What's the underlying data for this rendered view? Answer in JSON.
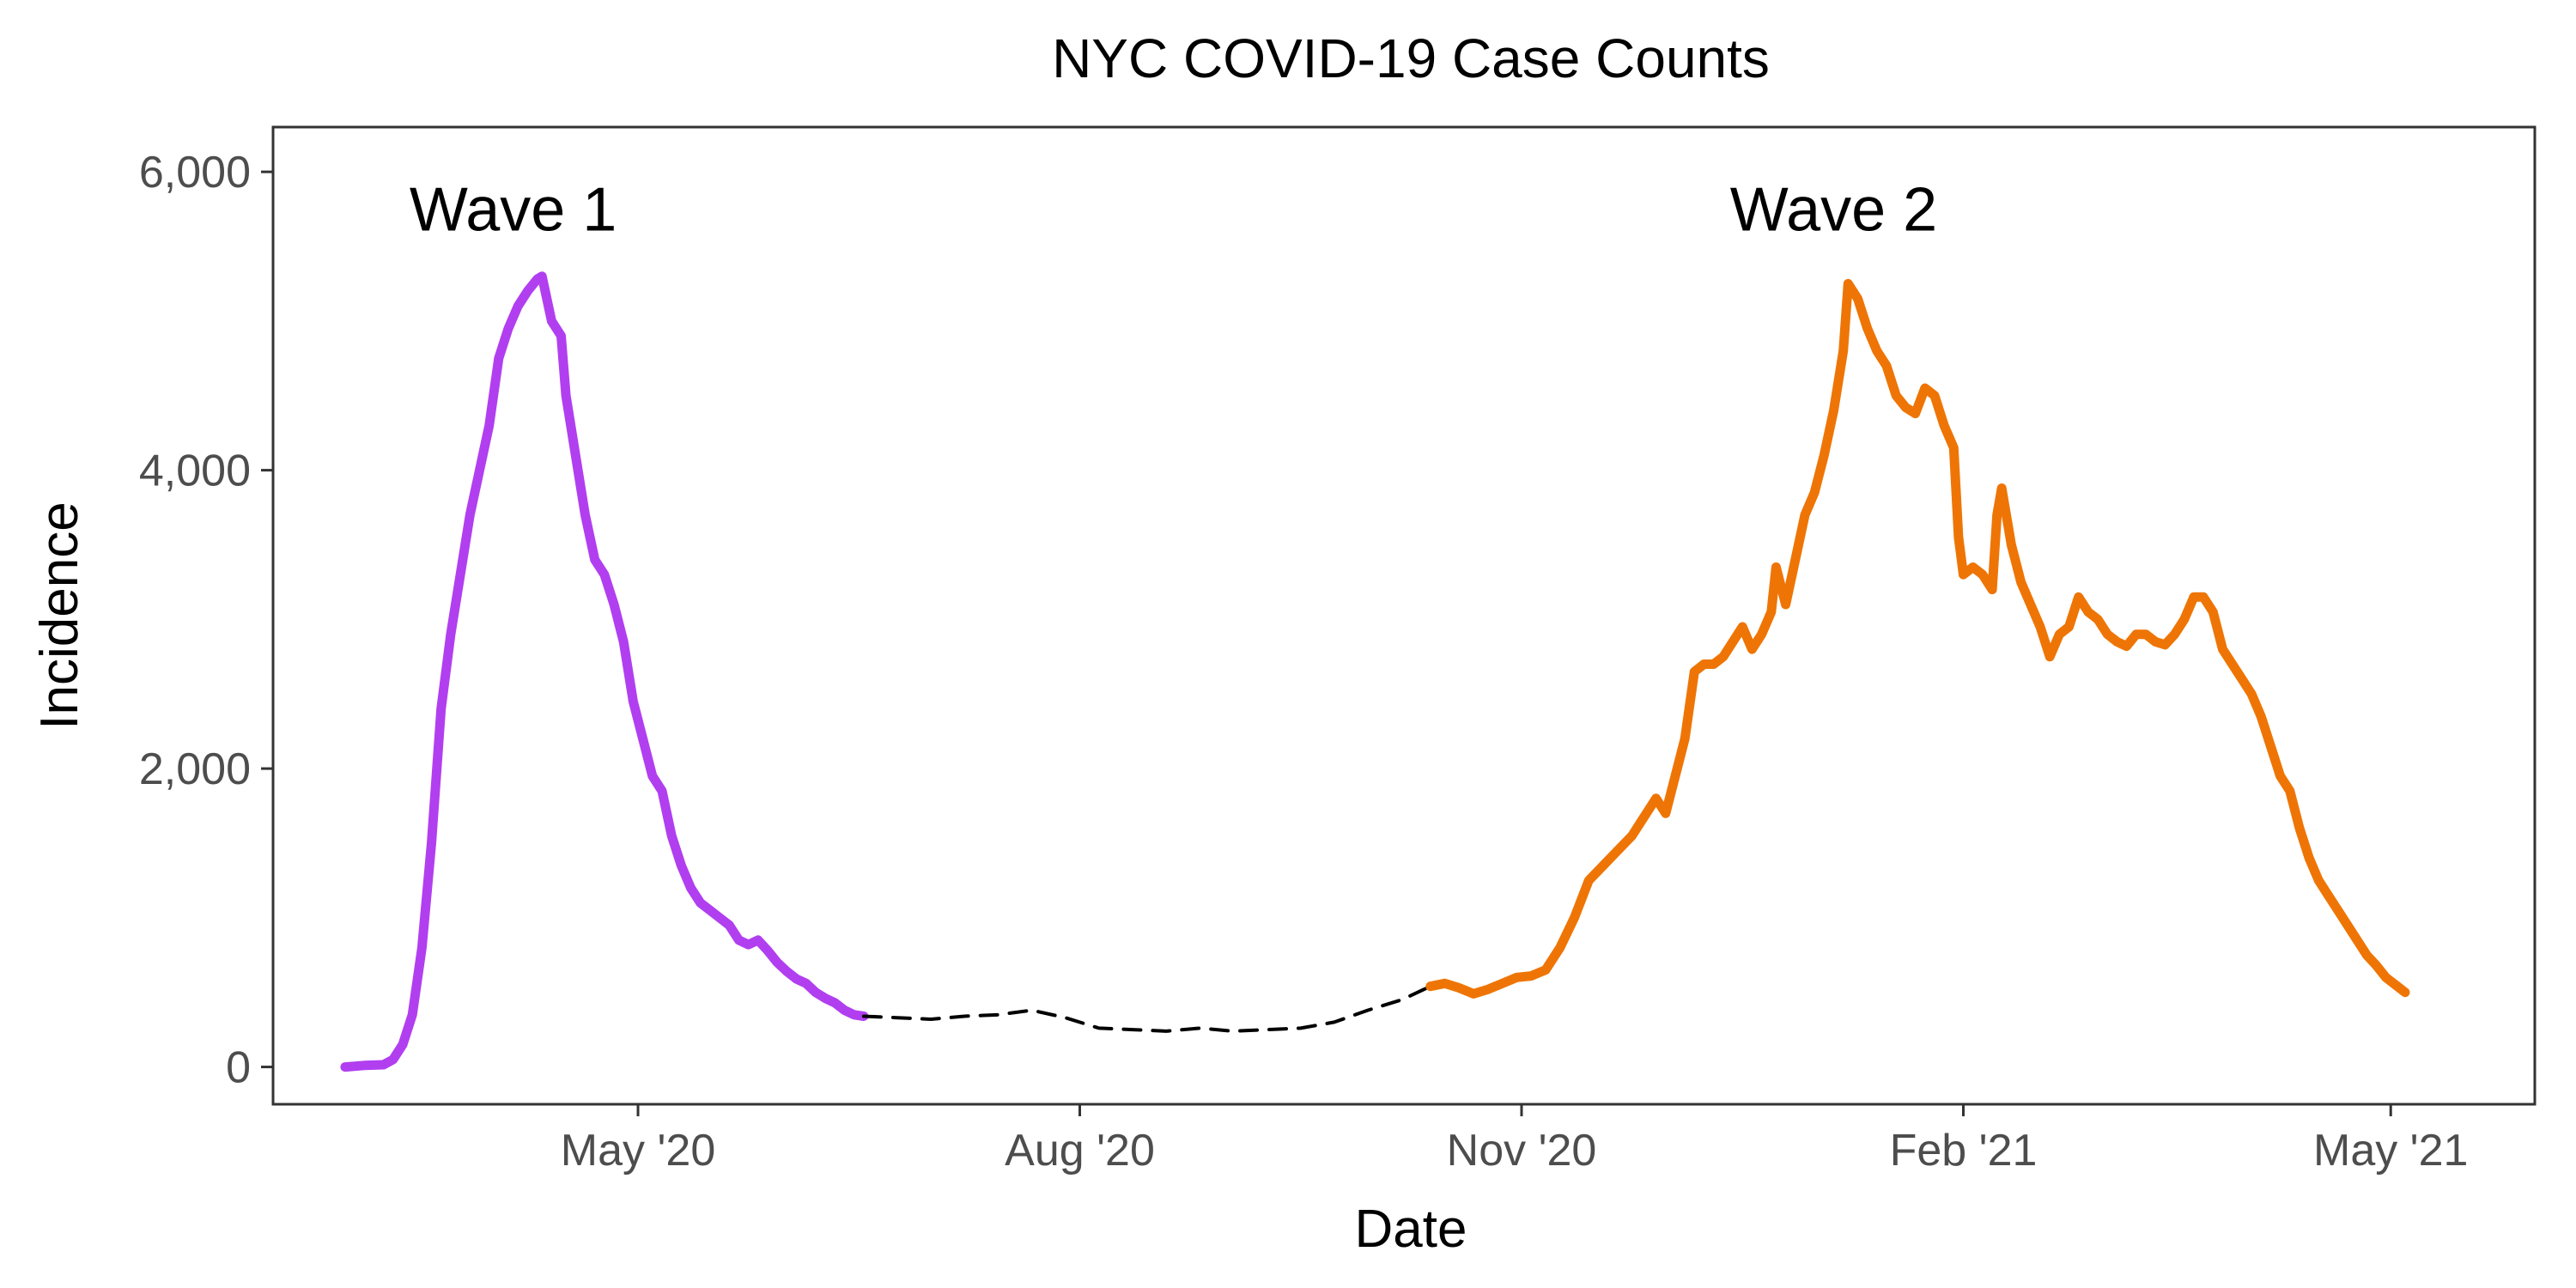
{
  "chart_data": {
    "type": "line",
    "title": "NYC COVID-19 Case Counts",
    "xlabel": "Date",
    "ylabel": "Incidence",
    "xlim": [
      "2020-02-15",
      "2021-05-31"
    ],
    "ylim": [
      -250,
      6300
    ],
    "grid": false,
    "legend": "none",
    "x_ticks": [
      {
        "date": "2020-05-01",
        "label": "May '20"
      },
      {
        "date": "2020-08-01",
        "label": "Aug '20"
      },
      {
        "date": "2020-11-01",
        "label": "Nov '20"
      },
      {
        "date": "2021-02-01",
        "label": "Feb '21"
      },
      {
        "date": "2021-05-01",
        "label": "May '21"
      }
    ],
    "y_ticks": [
      {
        "value": 0,
        "label": "0"
      },
      {
        "value": 2000,
        "label": "2,000"
      },
      {
        "value": 4000,
        "label": "4,000"
      },
      {
        "value": 6000,
        "label": "6,000"
      }
    ],
    "annotations": [
      {
        "text": "Wave 1",
        "x": "2020-04-05",
        "y": 5750
      },
      {
        "text": "Wave 2",
        "x": "2021-01-05",
        "y": 5750
      }
    ],
    "series": [
      {
        "color": "#b13ff0",
        "style": "solid",
        "points": [
          [
            "2020-03-01",
            0
          ],
          [
            "2020-03-05",
            10
          ],
          [
            "2020-03-09",
            15
          ],
          [
            "2020-03-11",
            50
          ],
          [
            "2020-03-13",
            150
          ],
          [
            "2020-03-15",
            350
          ],
          [
            "2020-03-17",
            800
          ],
          [
            "2020-03-19",
            1500
          ],
          [
            "2020-03-21",
            2400
          ],
          [
            "2020-03-23",
            2900
          ],
          [
            "2020-03-25",
            3300
          ],
          [
            "2020-03-27",
            3700
          ],
          [
            "2020-03-29",
            4000
          ],
          [
            "2020-03-31",
            4300
          ],
          [
            "2020-04-02",
            4750
          ],
          [
            "2020-04-04",
            4950
          ],
          [
            "2020-04-06",
            5100
          ],
          [
            "2020-04-08",
            5200
          ],
          [
            "2020-04-10",
            5280
          ],
          [
            "2020-04-11",
            5300
          ],
          [
            "2020-04-13",
            5000
          ],
          [
            "2020-04-15",
            4900
          ],
          [
            "2020-04-16",
            4500
          ],
          [
            "2020-04-18",
            4100
          ],
          [
            "2020-04-20",
            3700
          ],
          [
            "2020-04-22",
            3400
          ],
          [
            "2020-04-24",
            3300
          ],
          [
            "2020-04-26",
            3100
          ],
          [
            "2020-04-28",
            2850
          ],
          [
            "2020-04-30",
            2450
          ],
          [
            "2020-05-02",
            2200
          ],
          [
            "2020-05-04",
            1950
          ],
          [
            "2020-05-06",
            1850
          ],
          [
            "2020-05-08",
            1550
          ],
          [
            "2020-05-10",
            1350
          ],
          [
            "2020-05-12",
            1200
          ],
          [
            "2020-05-14",
            1100
          ],
          [
            "2020-05-16",
            1050
          ],
          [
            "2020-05-18",
            1000
          ],
          [
            "2020-05-20",
            950
          ],
          [
            "2020-05-22",
            850
          ],
          [
            "2020-05-24",
            820
          ],
          [
            "2020-05-26",
            850
          ],
          [
            "2020-05-28",
            780
          ],
          [
            "2020-05-30",
            700
          ],
          [
            "2020-06-01",
            640
          ],
          [
            "2020-06-03",
            590
          ],
          [
            "2020-06-05",
            560
          ],
          [
            "2020-06-07",
            500
          ],
          [
            "2020-06-09",
            460
          ],
          [
            "2020-06-11",
            430
          ],
          [
            "2020-06-13",
            380
          ],
          [
            "2020-06-15",
            350
          ],
          [
            "2020-06-17",
            340
          ]
        ]
      },
      {
        "color": "#000000",
        "style": "dashed",
        "points": [
          [
            "2020-06-17",
            340
          ],
          [
            "2020-06-24",
            330
          ],
          [
            "2020-07-01",
            320
          ],
          [
            "2020-07-08",
            340
          ],
          [
            "2020-07-15",
            350
          ],
          [
            "2020-07-22",
            380
          ],
          [
            "2020-07-29",
            330
          ],
          [
            "2020-08-05",
            260
          ],
          [
            "2020-08-12",
            250
          ],
          [
            "2020-08-19",
            240
          ],
          [
            "2020-08-26",
            260
          ],
          [
            "2020-09-02",
            240
          ],
          [
            "2020-09-09",
            250
          ],
          [
            "2020-09-16",
            260
          ],
          [
            "2020-09-23",
            300
          ],
          [
            "2020-09-30",
            380
          ],
          [
            "2020-10-07",
            450
          ],
          [
            "2020-10-13",
            540
          ]
        ]
      },
      {
        "color": "#ee7505",
        "style": "solid",
        "points": [
          [
            "2020-10-13",
            540
          ],
          [
            "2020-10-16",
            560
          ],
          [
            "2020-10-19",
            530
          ],
          [
            "2020-10-22",
            490
          ],
          [
            "2020-10-25",
            520
          ],
          [
            "2020-10-28",
            560
          ],
          [
            "2020-10-31",
            600
          ],
          [
            "2020-11-03",
            610
          ],
          [
            "2020-11-06",
            650
          ],
          [
            "2020-11-09",
            800
          ],
          [
            "2020-11-12",
            1000
          ],
          [
            "2020-11-15",
            1250
          ],
          [
            "2020-11-18",
            1350
          ],
          [
            "2020-11-21",
            1450
          ],
          [
            "2020-11-24",
            1550
          ],
          [
            "2020-11-27",
            1700
          ],
          [
            "2020-11-29",
            1800
          ],
          [
            "2020-12-01",
            1700
          ],
          [
            "2020-12-03",
            1950
          ],
          [
            "2020-12-05",
            2200
          ],
          [
            "2020-12-07",
            2650
          ],
          [
            "2020-12-09",
            2700
          ],
          [
            "2020-12-11",
            2700
          ],
          [
            "2020-12-13",
            2750
          ],
          [
            "2020-12-15",
            2850
          ],
          [
            "2020-12-17",
            2950
          ],
          [
            "2020-12-19",
            2800
          ],
          [
            "2020-12-21",
            2900
          ],
          [
            "2020-12-23",
            3050
          ],
          [
            "2020-12-24",
            3350
          ],
          [
            "2020-12-26",
            3100
          ],
          [
            "2020-12-28",
            3400
          ],
          [
            "2020-12-30",
            3700
          ],
          [
            "2021-01-01",
            3850
          ],
          [
            "2021-01-03",
            4100
          ],
          [
            "2021-01-05",
            4400
          ],
          [
            "2021-01-07",
            4800
          ],
          [
            "2021-01-08",
            5250
          ],
          [
            "2021-01-10",
            5150
          ],
          [
            "2021-01-12",
            4950
          ],
          [
            "2021-01-14",
            4800
          ],
          [
            "2021-01-16",
            4700
          ],
          [
            "2021-01-18",
            4500
          ],
          [
            "2021-01-20",
            4420
          ],
          [
            "2021-01-22",
            4380
          ],
          [
            "2021-01-24",
            4550
          ],
          [
            "2021-01-26",
            4500
          ],
          [
            "2021-01-28",
            4300
          ],
          [
            "2021-01-30",
            4150
          ],
          [
            "2021-01-31",
            3550
          ],
          [
            "2021-02-01",
            3300
          ],
          [
            "2021-02-03",
            3350
          ],
          [
            "2021-02-05",
            3300
          ],
          [
            "2021-02-07",
            3200
          ],
          [
            "2021-02-08",
            3700
          ],
          [
            "2021-02-09",
            3880
          ],
          [
            "2021-02-11",
            3500
          ],
          [
            "2021-02-13",
            3250
          ],
          [
            "2021-02-15",
            3100
          ],
          [
            "2021-02-17",
            2950
          ],
          [
            "2021-02-19",
            2750
          ],
          [
            "2021-02-21",
            2900
          ],
          [
            "2021-02-23",
            2950
          ],
          [
            "2021-02-25",
            3150
          ],
          [
            "2021-02-27",
            3050
          ],
          [
            "2021-03-01",
            3000
          ],
          [
            "2021-03-03",
            2900
          ],
          [
            "2021-03-05",
            2850
          ],
          [
            "2021-03-07",
            2820
          ],
          [
            "2021-03-09",
            2900
          ],
          [
            "2021-03-11",
            2900
          ],
          [
            "2021-03-13",
            2850
          ],
          [
            "2021-03-15",
            2830
          ],
          [
            "2021-03-17",
            2900
          ],
          [
            "2021-03-19",
            3000
          ],
          [
            "2021-03-21",
            3150
          ],
          [
            "2021-03-23",
            3150
          ],
          [
            "2021-03-25",
            3050
          ],
          [
            "2021-03-27",
            2800
          ],
          [
            "2021-03-29",
            2700
          ],
          [
            "2021-03-31",
            2600
          ],
          [
            "2021-04-02",
            2500
          ],
          [
            "2021-04-04",
            2350
          ],
          [
            "2021-04-06",
            2150
          ],
          [
            "2021-04-08",
            1950
          ],
          [
            "2021-04-10",
            1850
          ],
          [
            "2021-04-12",
            1600
          ],
          [
            "2021-04-14",
            1400
          ],
          [
            "2021-04-16",
            1250
          ],
          [
            "2021-04-18",
            1150
          ],
          [
            "2021-04-20",
            1050
          ],
          [
            "2021-04-22",
            950
          ],
          [
            "2021-04-24",
            850
          ],
          [
            "2021-04-26",
            750
          ],
          [
            "2021-04-28",
            680
          ],
          [
            "2021-04-30",
            600
          ],
          [
            "2021-05-02",
            550
          ],
          [
            "2021-05-04",
            500
          ]
        ]
      }
    ]
  }
}
